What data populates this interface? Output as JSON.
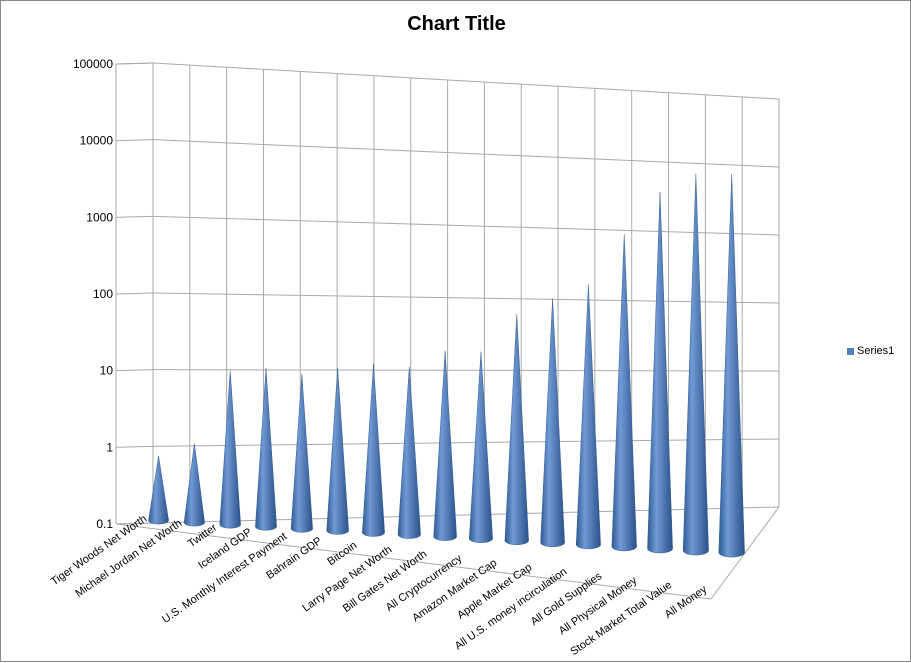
{
  "chart_data": {
    "type": "bar",
    "subtype": "3d-cone",
    "title": "Chart Title",
    "xlabel": "",
    "ylabel": "",
    "yscale": "log",
    "ylim": [
      0.1,
      100000
    ],
    "yticks": [
      "0.1",
      "1",
      "10",
      "100",
      "1000",
      "10000",
      "100000"
    ],
    "grid": true,
    "legend": "right",
    "categories": [
      "Tiger Woods Net Worth",
      "Michael Jordan Net Worth",
      "Twitter",
      "Iceland GDP",
      "U.S. Monthly Interest Payment",
      "Bahrain GDP",
      "Bitcoin",
      "Larry Page Net Worth",
      "Bill Gates Net Worth",
      "All Cryptocurrency",
      "Amazon Market Cap",
      "Apple Market Cap",
      "All U.S. money incirculation",
      "All Gold Supplies",
      "All Physical Money",
      "Stock Market Total Value",
      "All Money"
    ],
    "series": [
      {
        "name": "Series1",
        "color": "#4f81bd",
        "values": [
          0.7,
          1.1,
          11,
          13,
          12,
          16,
          20,
          20,
          37,
          40,
          150,
          280,
          500,
          3000,
          14000,
          30000,
          35000
        ]
      }
    ]
  }
}
